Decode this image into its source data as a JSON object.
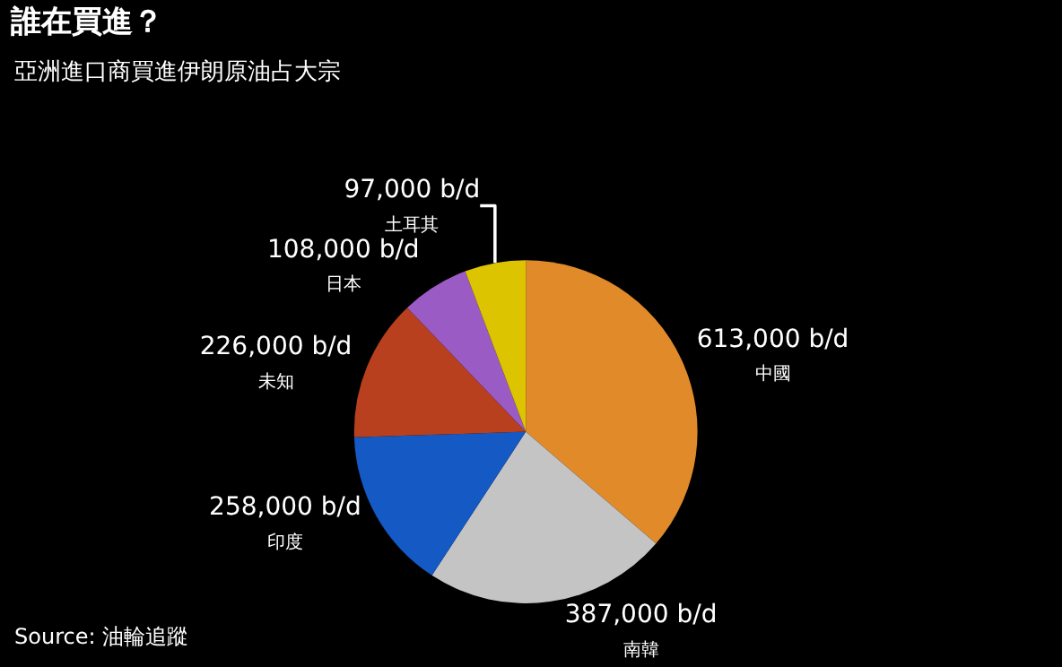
{
  "chart_data": {
    "type": "pie",
    "title": "誰在買進？",
    "subtitle": "亞洲進口商買進伊朗原油占大宗",
    "categories": [
      "中國",
      "南韓",
      "印度",
      "未知",
      "日本",
      "土耳其"
    ],
    "values": [
      613000,
      387000,
      258000,
      226000,
      108000,
      97000
    ],
    "value_labels": [
      "613,000 b/d",
      "387,000 b/d",
      "258,000 b/d",
      "226,000 b/d",
      "108,000 b/d",
      "97,000 b/d"
    ],
    "colors": [
      "#e08a2a",
      "#c4c4c4",
      "#1459c4",
      "#b8401e",
      "#9b5bc4",
      "#dcc400"
    ],
    "legend": false,
    "annotations": [
      "Source: 油輪追蹤"
    ]
  }
}
